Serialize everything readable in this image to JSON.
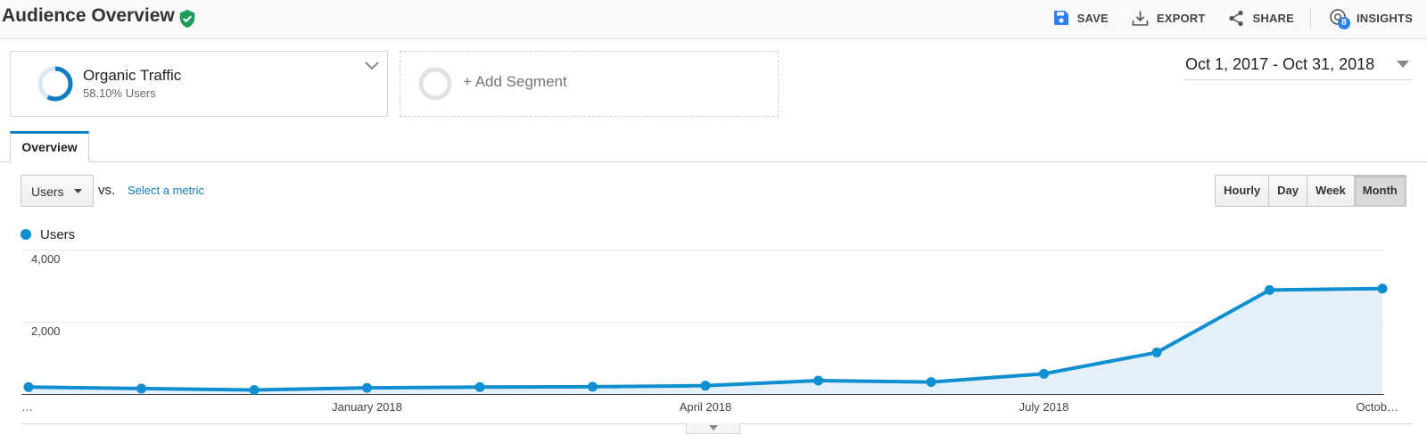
{
  "header": {
    "title": "Audience Overview",
    "actions": {
      "save": "SAVE",
      "export": "EXPORT",
      "share": "SHARE",
      "insights": "INSIGHTS",
      "insights_count": "8"
    }
  },
  "segments": {
    "primary": {
      "name": "Organic Traffic",
      "subtitle": "58.10% Users"
    },
    "add_label": "+ Add Segment"
  },
  "date_range": "Oct 1, 2017 - Oct 31, 2018",
  "tabs": {
    "overview": "Overview"
  },
  "metric": {
    "selected": "Users",
    "vs": "vs.",
    "select_metric": "Select a metric"
  },
  "granularity": {
    "options": [
      "Hourly",
      "Day",
      "Week",
      "Month"
    ],
    "active": "Month"
  },
  "legend": {
    "series_name": "Users"
  },
  "colors": {
    "accent": "#0f8fd0",
    "fill": "#e3f0fa",
    "link": "#0f7dc2",
    "verified": "#1e9e5a"
  },
  "chart_data": {
    "type": "area",
    "x": [
      "Oct 2017",
      "Nov 2017",
      "Dec 2017",
      "Jan 2018",
      "Feb 2018",
      "Mar 2018",
      "Apr 2018",
      "May 2018",
      "Jun 2018",
      "Jul 2018",
      "Aug 2018",
      "Sep 2018",
      "Oct 2018"
    ],
    "series": [
      {
        "name": "Users",
        "values": [
          190,
          150,
          110,
          170,
          190,
          200,
          230,
          370,
          330,
          560,
          1150,
          2880,
          2920
        ]
      }
    ],
    "ylim": [
      0,
      4000
    ],
    "y_ticks": [
      "2,000",
      "4,000"
    ],
    "y_tick_values": [
      2000,
      4000
    ],
    "x_tick_labels": [
      "…",
      "January 2018",
      "April 2018",
      "July 2018",
      "Octob…"
    ],
    "x_tick_indices": [
      0,
      3,
      6,
      9,
      12
    ],
    "grid": true
  }
}
